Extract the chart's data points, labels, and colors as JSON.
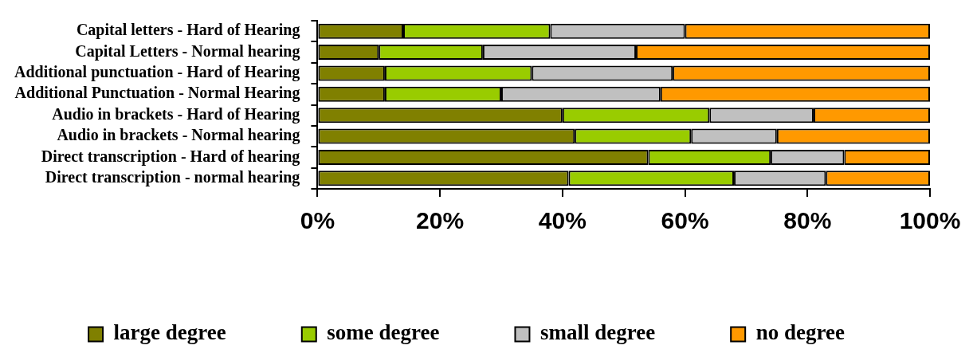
{
  "chart_data": {
    "type": "bar",
    "orientation": "horizontal",
    "stacked": true,
    "categories": [
      "Capital letters - Hard of Hearing",
      "Capital Letters - Normal hearing",
      "Additional punctuation - Hard of Hearing",
      "Additional Punctuation - Normal Hearing",
      "Audio in brackets - Hard of Hearing",
      "Audio in brackets - Normal hearing",
      "Direct transcription - Hard of hearing",
      "Direct transcription - normal hearing"
    ],
    "series": [
      {
        "name": "large degree",
        "color": "#808000",
        "values": [
          14,
          10,
          11,
          11,
          40,
          42,
          54,
          41
        ]
      },
      {
        "name": "some degree",
        "color": "#99cc00",
        "values": [
          24,
          17,
          24,
          19,
          24,
          19,
          20,
          27
        ]
      },
      {
        "name": "small degree",
        "color": "#c0c0c0",
        "values": [
          22,
          25,
          23,
          26,
          17,
          14,
          12,
          15
        ]
      },
      {
        "name": "no degree",
        "color": "#ff9900",
        "values": [
          40,
          48,
          42,
          44,
          19,
          25,
          14,
          17
        ]
      }
    ],
    "xlim": [
      0,
      100
    ],
    "xticks": [
      {
        "value": 0,
        "label": "0%"
      },
      {
        "value": 20,
        "label": "20%"
      },
      {
        "value": 40,
        "label": "40%"
      },
      {
        "value": 60,
        "label": "60%"
      },
      {
        "value": 80,
        "label": "80%"
      },
      {
        "value": 100,
        "label": "100%"
      }
    ],
    "grid": false,
    "legend": "bottom"
  }
}
